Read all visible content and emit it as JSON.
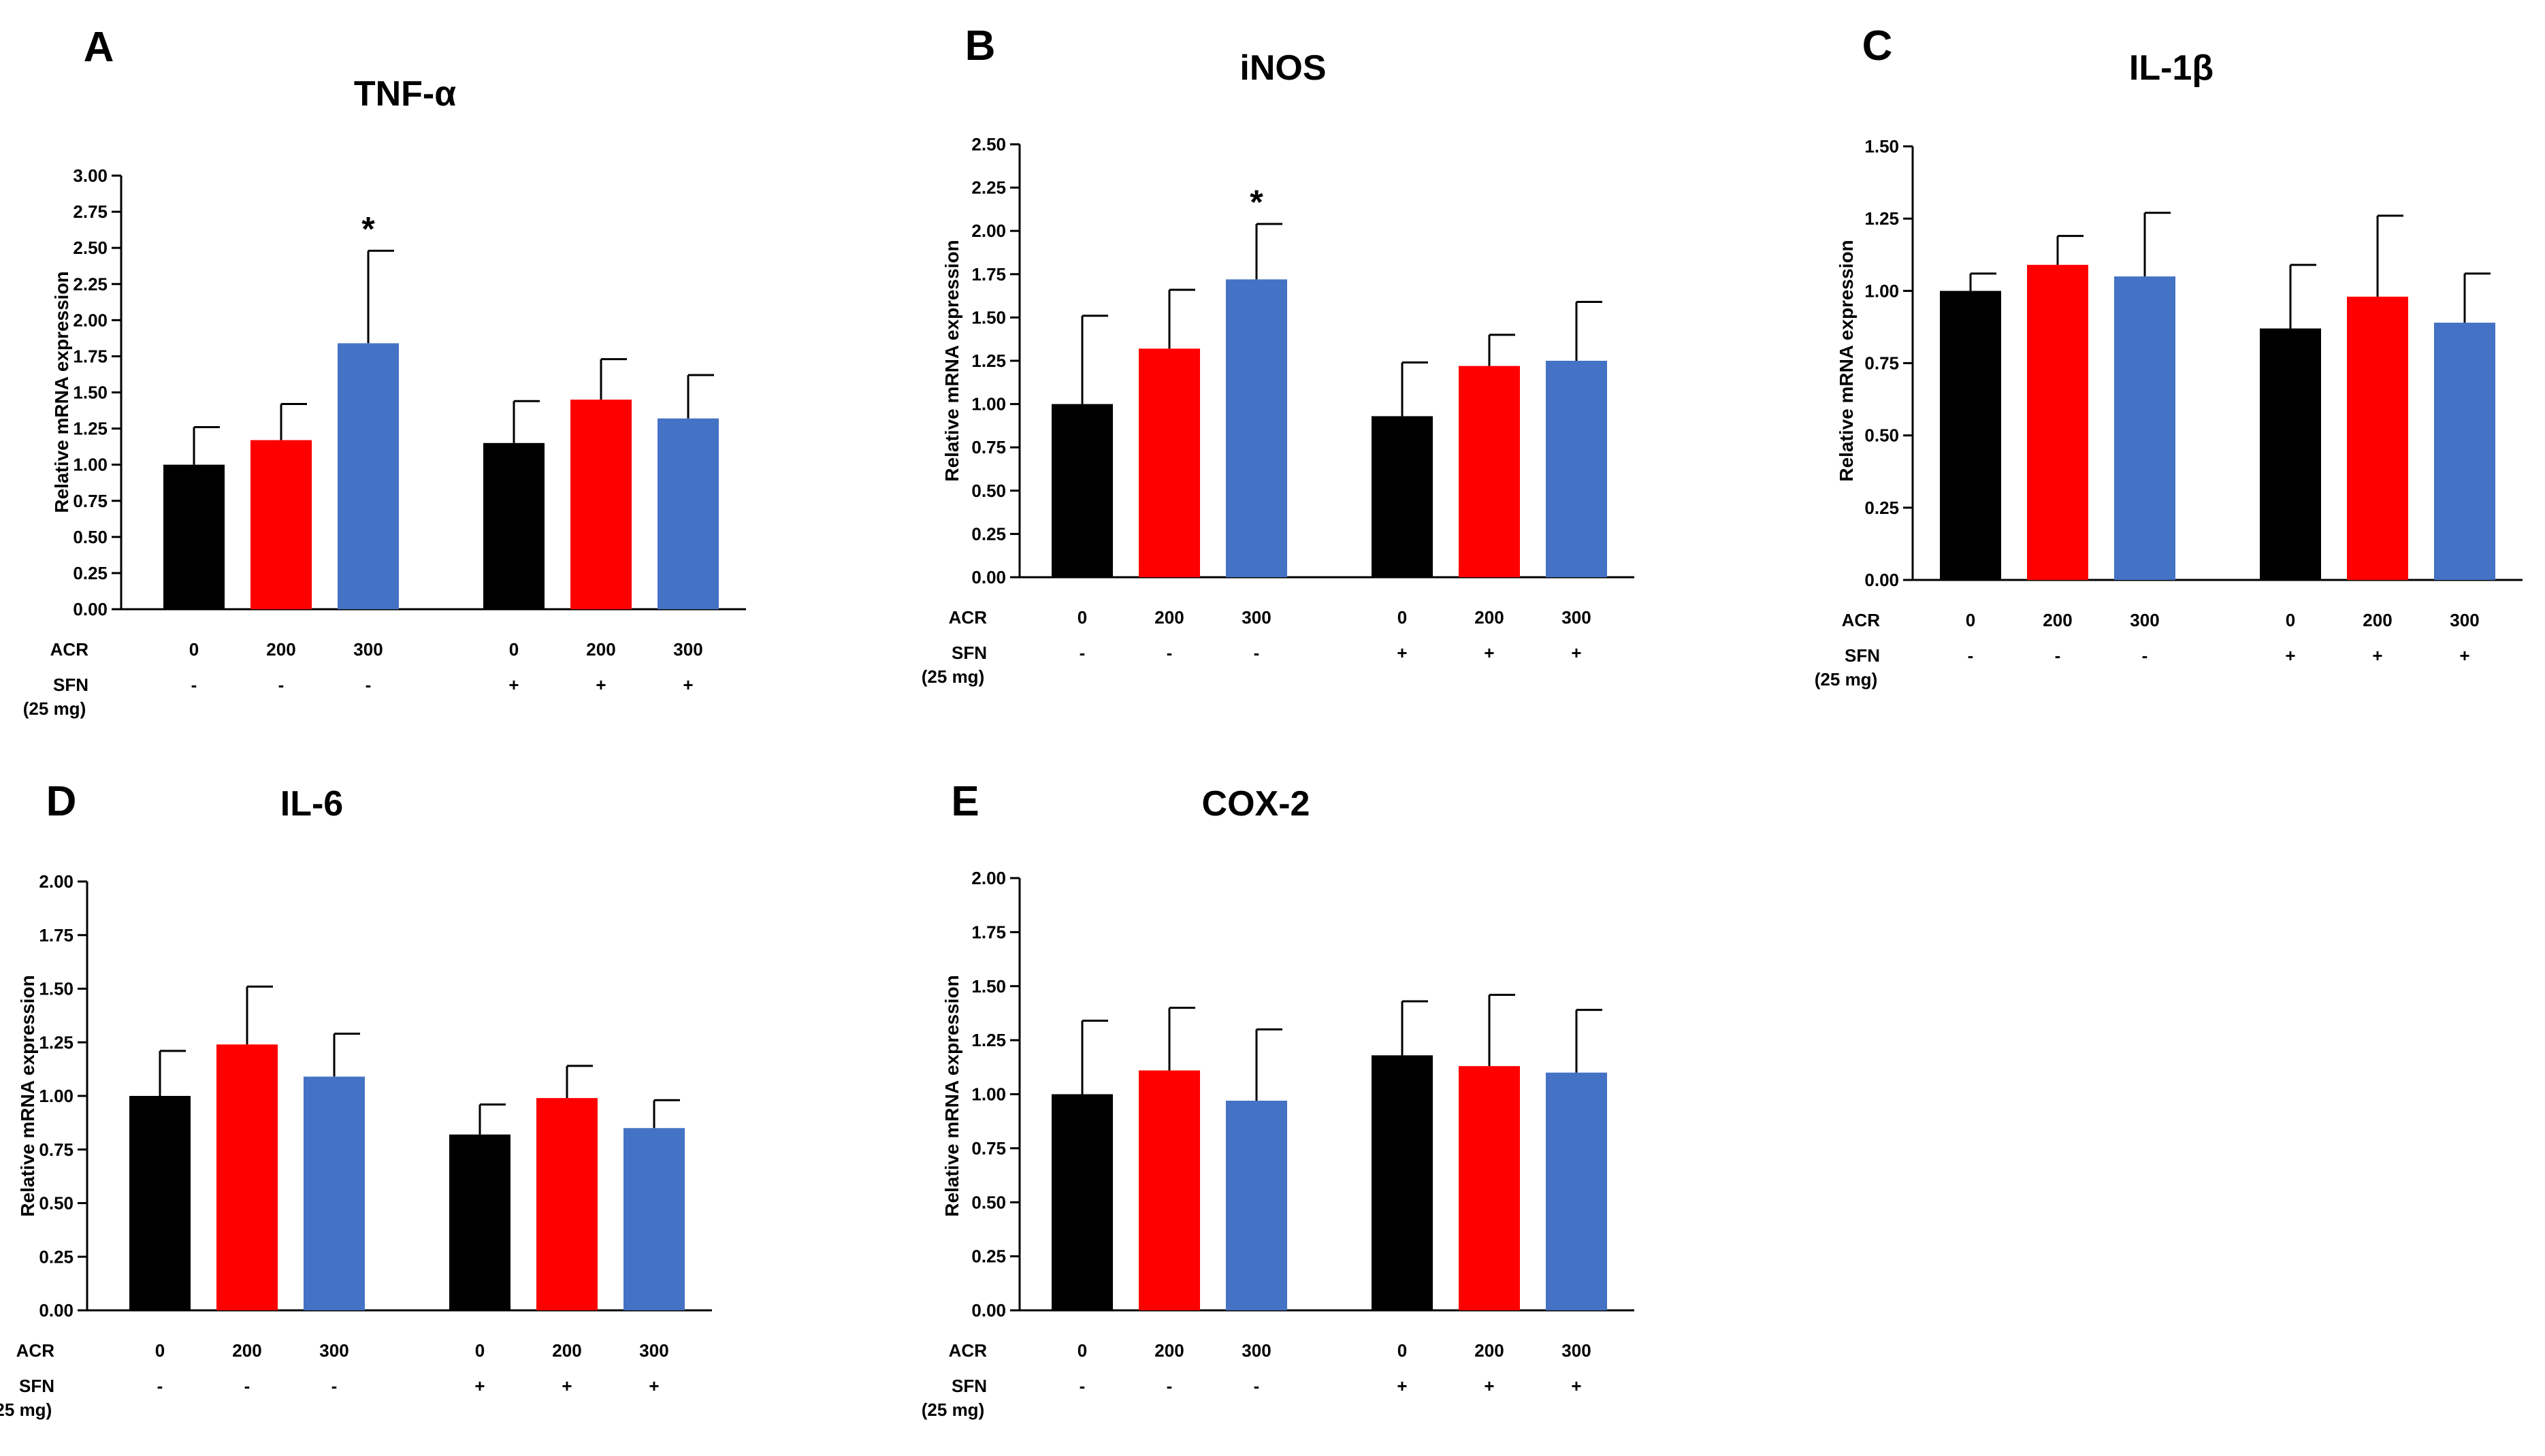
{
  "figure": {
    "bar_colors": [
      "#000000",
      "#ff0000",
      "#4472c4"
    ],
    "row_labels": {
      "acr": "ACR",
      "sfn": "SFN",
      "sfn_dose": "(25 mg)"
    }
  },
  "chart_data": [
    {
      "type": "bar",
      "panel": "A",
      "title": "TNF-α",
      "ylabel": "Relative mRNA expression",
      "ylim": [
        0,
        3.0
      ],
      "yticks": [
        "0.00",
        "0.25",
        "0.50",
        "0.75",
        "1.00",
        "1.25",
        "1.50",
        "1.75",
        "2.00",
        "2.25",
        "2.50",
        "2.75",
        "3.00"
      ],
      "acr": [
        "0",
        "200",
        "300",
        "0",
        "200",
        "300"
      ],
      "sfn": [
        "-",
        "-",
        "-",
        "+",
        "+",
        "+"
      ],
      "values": [
        1.0,
        1.17,
        1.84,
        1.15,
        1.45,
        1.32
      ],
      "errors": [
        0.26,
        0.25,
        0.64,
        0.29,
        0.28,
        0.3
      ],
      "annotations": [
        {
          "bar": 2,
          "text": "*"
        }
      ]
    },
    {
      "type": "bar",
      "panel": "B",
      "title": "iNOS",
      "ylabel": "Relative mRNA expression",
      "ylim": [
        0,
        2.5
      ],
      "yticks": [
        "0.00",
        "0.25",
        "0.50",
        "0.75",
        "1.00",
        "1.25",
        "1.50",
        "1.75",
        "2.00",
        "2.25",
        "2.50"
      ],
      "acr": [
        "0",
        "200",
        "300",
        "0",
        "200",
        "300"
      ],
      "sfn": [
        "-",
        "-",
        "-",
        "+",
        "+",
        "+"
      ],
      "values": [
        1.0,
        1.32,
        1.72,
        0.93,
        1.22,
        1.25
      ],
      "errors": [
        0.51,
        0.34,
        0.32,
        0.31,
        0.18,
        0.34
      ],
      "annotations": [
        {
          "bar": 2,
          "text": "*"
        }
      ]
    },
    {
      "type": "bar",
      "panel": "C",
      "title": "IL-1β",
      "ylabel": "Relative mRNA expression",
      "ylim": [
        0,
        1.5
      ],
      "yticks": [
        "0.00",
        "0.25",
        "0.50",
        "0.75",
        "1.00",
        "1.25",
        "1.50"
      ],
      "acr": [
        "0",
        "200",
        "300",
        "0",
        "200",
        "300"
      ],
      "sfn": [
        "-",
        "-",
        "-",
        "+",
        "+",
        "+"
      ],
      "values": [
        1.0,
        1.09,
        1.05,
        0.87,
        0.98,
        0.89
      ],
      "errors": [
        0.06,
        0.1,
        0.22,
        0.22,
        0.28,
        0.17
      ],
      "annotations": []
    },
    {
      "type": "bar",
      "panel": "D",
      "title": "IL-6",
      "ylabel": "Relative mRNA expression",
      "ylim": [
        0,
        2.0
      ],
      "yticks": [
        "0.00",
        "0.25",
        "0.50",
        "0.75",
        "1.00",
        "1.25",
        "1.50",
        "1.75",
        "2.00"
      ],
      "acr": [
        "0",
        "200",
        "300",
        "0",
        "200",
        "300"
      ],
      "sfn": [
        "-",
        "-",
        "-",
        "+",
        "+",
        "+"
      ],
      "values": [
        1.0,
        1.24,
        1.09,
        0.82,
        0.99,
        0.85
      ],
      "errors": [
        0.21,
        0.27,
        0.2,
        0.14,
        0.15,
        0.13
      ],
      "annotations": []
    },
    {
      "type": "bar",
      "panel": "E",
      "title": "COX-2",
      "ylabel": "Relative mRNA expression",
      "ylim": [
        0,
        2.0
      ],
      "yticks": [
        "0.00",
        "0.25",
        "0.50",
        "0.75",
        "1.00",
        "1.25",
        "1.50",
        "1.75",
        "2.00"
      ],
      "acr": [
        "0",
        "200",
        "300",
        "0",
        "200",
        "300"
      ],
      "sfn": [
        "-",
        "-",
        "-",
        "+",
        "+",
        "+"
      ],
      "values": [
        1.0,
        1.11,
        0.97,
        1.18,
        1.13,
        1.1
      ],
      "errors": [
        0.34,
        0.29,
        0.33,
        0.25,
        0.33,
        0.29
      ],
      "annotations": []
    }
  ]
}
